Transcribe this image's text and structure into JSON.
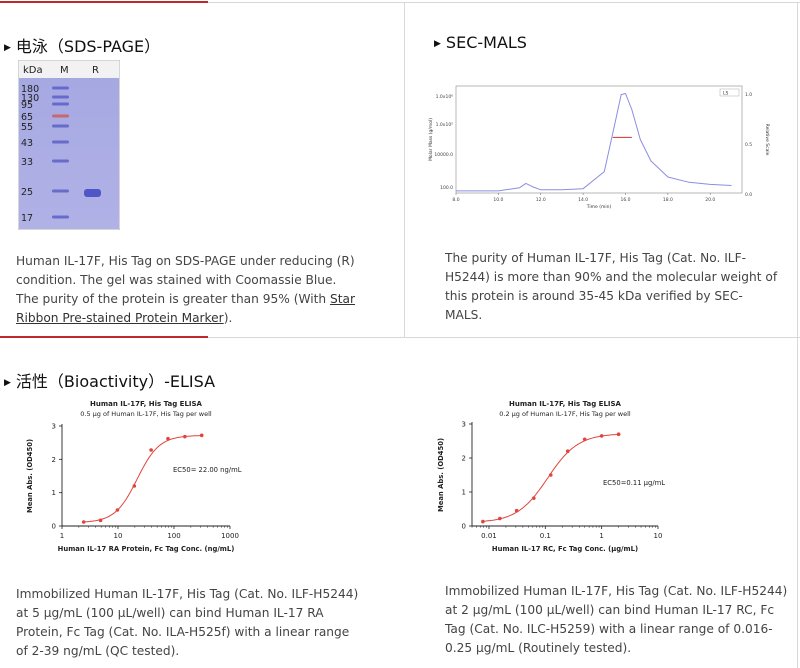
{
  "sections": {
    "sds_page": {
      "title": "电泳（SDS-PAGE）",
      "gel": {
        "header_kda": "kDa",
        "header_m": "M",
        "header_r": "R",
        "markers": [
          "180",
          "130",
          "95",
          "65",
          "55",
          "43",
          "33",
          "25",
          "17"
        ]
      },
      "description_text": "Human IL-17F, His Tag on SDS-PAGE under reducing (R) condition. The gel was stained with Coomassie Blue. The purity of the protein is greater than 95% (With ",
      "description_link": "Star Ribbon Pre-stained Protein Marker",
      "description_end": ")."
    },
    "sec_mals": {
      "title": "SEC-MALS",
      "chart_data": {
        "type": "line",
        "xlabel": "Time (min)",
        "ylabel": "Molar Mass (g/mol)",
        "y2label": "Relative Scale",
        "xticks": [
          "8.0",
          "10.0",
          "12.0",
          "14.0",
          "16.0",
          "18.0",
          "20.0"
        ],
        "yticks": [
          "1.0x10⁶",
          "1.0x10⁵",
          "10000.0",
          "100.0"
        ],
        "y2ticks": [
          "1.0",
          "0.5",
          "0.0"
        ],
        "legend": "LS",
        "xlim": [
          8,
          21.5
        ],
        "series": [
          {
            "x": [
              8,
              10,
              11,
              11.3,
              11.6,
              12,
              13,
              14,
              15,
              15.5,
              15.8,
              16,
              16.3,
              16.7,
              17.2,
              18,
              19,
              20,
              21
            ],
            "y": [
              0.02,
              0.02,
              0.05,
              0.09,
              0.06,
              0.03,
              0.03,
              0.04,
              0.2,
              0.65,
              0.92,
              0.93,
              0.78,
              0.5,
              0.3,
              0.15,
              0.1,
              0.08,
              0.07
            ]
          }
        ]
      },
      "description": "The purity of Human IL-17F, His Tag (Cat. No. ILF-H5244) is more than 90% and the molecular weight of this protein is around 35-45 kDa verified by SEC-MALS."
    },
    "bioactivity": {
      "title": "活性（Bioactivity）-ELISA",
      "elisa1": {
        "chart_data": {
          "type": "scatter",
          "title": "Human IL-17F, His Tag ELISA",
          "subtitle": "0.5 μg of Human IL-17F, His Tag per well",
          "xlabel": "Human IL-17 RA Protein, Fc Tag Conc. (ng/mL)",
          "ylabel": "Mean Abs. (OD450)",
          "xscale": "log",
          "xlim": [
            1,
            1000
          ],
          "ylim": [
            0,
            3
          ],
          "xticks": [
            {
              "v": 1,
              "l": "1"
            },
            {
              "v": 10,
              "l": "10"
            },
            {
              "v": 100,
              "l": "100"
            },
            {
              "v": 1000,
              "l": "1000"
            }
          ],
          "yticks": [
            "0",
            "1",
            "2",
            "3"
          ],
          "annotation": "EC50= 22.00 ng/mL",
          "x": [
            2.44,
            4.88,
            9.77,
            19.53,
            39.06,
            78.13,
            156.25,
            312.5
          ],
          "y": [
            0.12,
            0.17,
            0.48,
            1.2,
            2.28,
            2.62,
            2.68,
            2.72
          ],
          "fit": {
            "bottom": 0.1,
            "top": 2.72,
            "ec50": 22,
            "hill": 2.2
          }
        },
        "description": "Immobilized Human IL-17F, His Tag (Cat. No. ILF-H5244) at 5 μg/mL (100 μL/well) can bind Human IL-17 RA Protein, Fc Tag (Cat. No. ILA-H525f) with a linear range of 2-39 ng/mL (QC tested)."
      },
      "elisa2": {
        "chart_data": {
          "type": "scatter",
          "title": "Human IL-17F, His Tag ELISA",
          "subtitle": "0.2 μg of Human IL-17F, His Tag  per well",
          "xlabel": "Human IL-17 RC, Fc Tag Conc. (μg/mL)",
          "ylabel": "Mean Abs. (OD450)",
          "xscale": "log",
          "xlim": [
            0.005,
            10
          ],
          "ylim": [
            0,
            3
          ],
          "xticks": [
            {
              "v": 0.01,
              "l": "0.01"
            },
            {
              "v": 0.1,
              "l": "0.1"
            },
            {
              "v": 1,
              "l": "1"
            },
            {
              "v": 10,
              "l": "10"
            }
          ],
          "yticks": [
            "0",
            "1",
            "2",
            "3"
          ],
          "annotation": "EC50=0.11 μg/mL",
          "x": [
            0.0078,
            0.0156,
            0.031,
            0.0625,
            0.125,
            0.25,
            0.5,
            1,
            2
          ],
          "y": [
            0.13,
            0.22,
            0.45,
            0.82,
            1.5,
            2.2,
            2.55,
            2.65,
            2.7
          ],
          "fit": {
            "bottom": 0.1,
            "top": 2.72,
            "ec50": 0.11,
            "hill": 1.6
          }
        },
        "description": "Immobilized Human IL-17F, His Tag (Cat. No. ILF-H5244) at 2 μg/mL (100 μL/well) can bind Human IL-17 RC, Fc Tag (Cat. No. ILC-H5259) with a linear range of 0.016-0.25 μg/mL (Routinely tested)."
      }
    }
  }
}
